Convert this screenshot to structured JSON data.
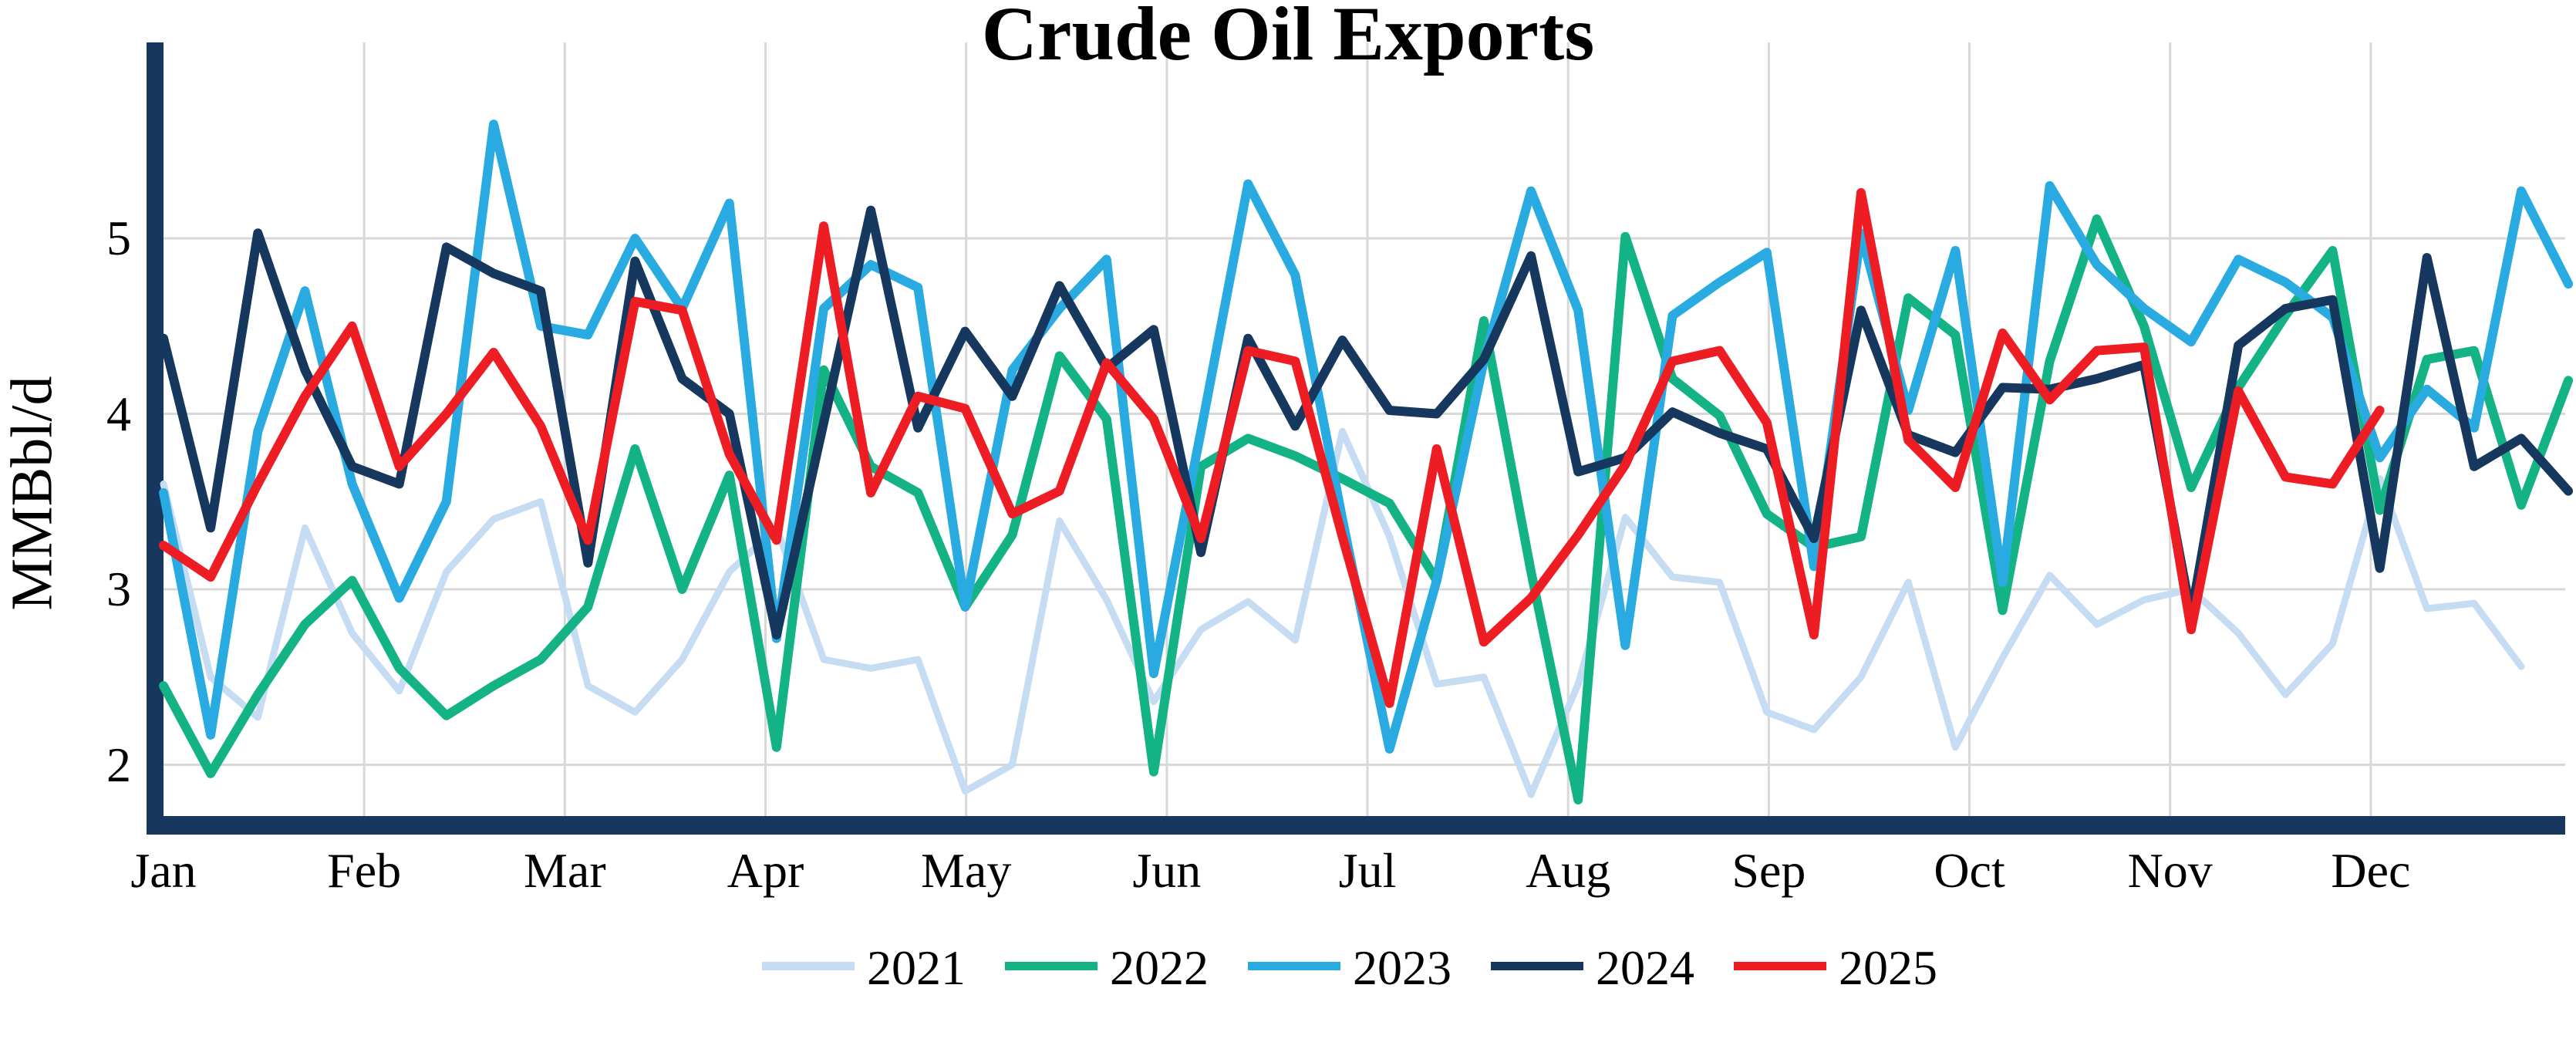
{
  "title": "Crude Oil Exports",
  "y_axis": {
    "label": "MMBbl/d",
    "ticks": [
      "5",
      "4",
      "3",
      "2"
    ],
    "tick_values": [
      5,
      4,
      3,
      2
    ]
  },
  "x_axis": {
    "months": [
      "Jan",
      "Feb",
      "Mar",
      "Apr",
      "May",
      "Jun",
      "Jul",
      "Aug",
      "Sep",
      "Oct",
      "Nov",
      "Dec"
    ]
  },
  "legend": [
    {
      "label": "2021",
      "color": "#C6DCF3"
    },
    {
      "label": "2022",
      "color": "#14B385"
    },
    {
      "label": "2023",
      "color": "#29ABE2"
    },
    {
      "label": "2024",
      "color": "#16375E"
    },
    {
      "label": "2025",
      "color": "#EE1C23"
    }
  ],
  "colors": {
    "axis": "#17375E",
    "gridline": "#D8D8D8",
    "background": "#FFFFFF",
    "text": "#000000"
  },
  "chart_data": {
    "type": "line",
    "title": "Crude Oil Exports",
    "ylabel": "MMBbl/d",
    "x_unit": "week_of_year",
    "categories_months": [
      "Jan",
      "Feb",
      "Mar",
      "Apr",
      "May",
      "Jun",
      "Jul",
      "Aug",
      "Sep",
      "Oct",
      "Nov",
      "Dec"
    ],
    "ylim": [
      1.7,
      6.1
    ],
    "yticks": [
      2,
      3,
      4,
      5
    ],
    "grid": true,
    "legend_position": "bottom",
    "series": [
      {
        "name": "2021",
        "color": "#C6DCF3",
        "stroke_width": 9,
        "values": [
          3.6,
          2.5,
          2.27,
          3.35,
          2.75,
          2.42,
          3.1,
          3.4,
          3.5,
          2.45,
          2.3,
          2.6,
          3.1,
          3.35,
          2.6,
          2.55,
          2.6,
          1.85,
          2.0,
          3.39,
          2.94,
          2.36,
          2.77,
          2.93,
          2.71,
          3.9,
          3.3,
          2.46,
          2.5,
          1.83,
          2.46,
          3.41,
          3.07,
          3.04,
          2.3,
          2.2,
          2.5,
          3.04,
          2.1,
          2.61,
          3.08,
          2.8,
          2.94,
          3.0,
          2.75,
          2.4,
          2.69,
          3.63,
          2.89,
          2.92,
          2.56
        ]
      },
      {
        "name": "2022",
        "color": "#14B385",
        "stroke_width": 12,
        "values": [
          2.45,
          1.95,
          2.4,
          2.8,
          3.05,
          2.55,
          2.28,
          2.45,
          2.6,
          2.9,
          3.8,
          3.0,
          3.65,
          2.1,
          4.25,
          3.7,
          3.55,
          2.9,
          3.31,
          4.33,
          3.97,
          1.96,
          3.7,
          3.86,
          3.76,
          3.63,
          3.49,
          3.05,
          4.53,
          3.1,
          1.8,
          5.01,
          4.2,
          3.99,
          3.43,
          3.24,
          3.3,
          4.66,
          4.45,
          2.88,
          4.3,
          5.11,
          4.5,
          3.58,
          4.15,
          4.56,
          4.93,
          3.45,
          4.31,
          4.36,
          3.48,
          4.19
        ]
      },
      {
        "name": "2023",
        "color": "#29ABE2",
        "stroke_width": 12,
        "values": [
          3.55,
          2.17,
          3.9,
          4.7,
          3.6,
          2.95,
          3.5,
          5.65,
          4.5,
          4.45,
          5.0,
          4.6,
          5.2,
          2.72,
          4.6,
          4.85,
          4.72,
          2.9,
          4.25,
          4.6,
          4.88,
          2.52,
          3.9,
          5.31,
          4.79,
          3.4,
          2.09,
          3.05,
          4.3,
          5.27,
          4.59,
          2.68,
          4.56,
          4.75,
          4.92,
          3.13,
          5.03,
          4.02,
          4.93,
          3.04,
          5.3,
          4.85,
          4.6,
          4.41,
          4.88,
          4.75,
          4.55,
          3.75,
          4.14,
          3.92,
          5.27,
          4.74
        ]
      },
      {
        "name": "2024",
        "color": "#16375E",
        "stroke_width": 12,
        "values": [
          4.43,
          3.35,
          5.03,
          4.25,
          3.7,
          3.6,
          4.95,
          4.8,
          4.7,
          3.15,
          4.87,
          4.2,
          4.0,
          2.74,
          3.95,
          5.16,
          3.92,
          4.47,
          4.1,
          4.73,
          4.26,
          4.48,
          3.21,
          4.43,
          3.93,
          4.42,
          4.02,
          4.0,
          4.31,
          4.9,
          3.67,
          3.75,
          4.01,
          3.89,
          3.8,
          3.29,
          4.59,
          3.88,
          3.78,
          4.15,
          4.14,
          4.2,
          4.28,
          2.85,
          4.39,
          4.6,
          4.65,
          3.12,
          4.89,
          3.7,
          3.86,
          3.56
        ]
      },
      {
        "name": "2025",
        "color": "#EE1C23",
        "stroke_width": 12,
        "values": [
          3.25,
          3.07,
          3.6,
          4.1,
          4.5,
          3.7,
          4.0,
          4.35,
          3.93,
          3.28,
          4.64,
          4.59,
          3.77,
          3.28,
          5.07,
          3.55,
          4.1,
          4.03,
          3.43,
          3.56,
          4.29,
          3.97,
          3.29,
          4.36,
          4.3,
          3.3,
          2.35,
          3.8,
          2.7,
          2.95,
          3.31,
          3.71,
          4.3,
          4.36,
          3.95,
          2.74,
          5.26,
          3.85,
          3.58,
          4.46,
          4.08,
          4.36,
          4.38,
          2.77,
          4.13,
          3.64,
          3.6,
          4.02
        ]
      }
    ]
  }
}
